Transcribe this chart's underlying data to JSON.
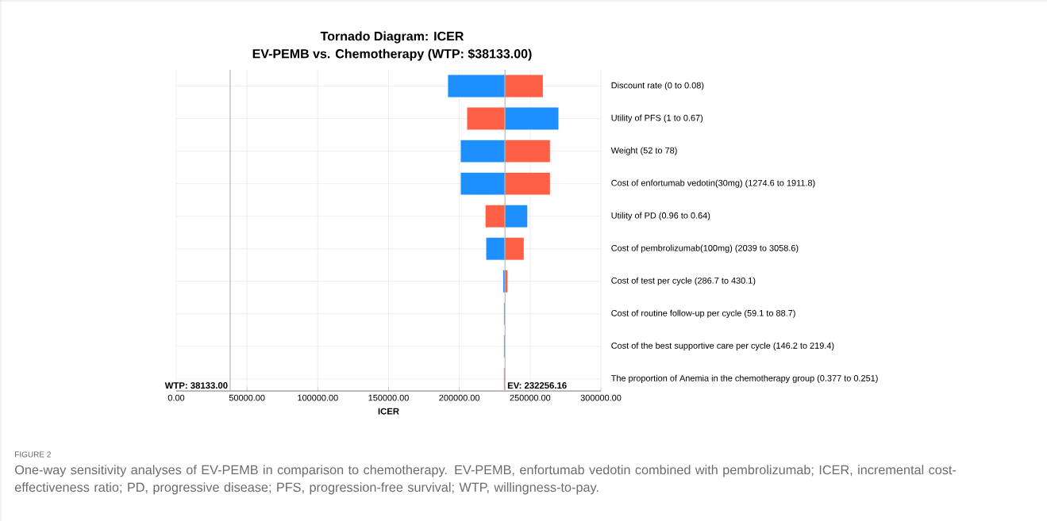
{
  "chart_data": {
    "type": "bar",
    "orientation": "horizontal",
    "title": "Tornado Diagram: ICER",
    "subtitle": "EV-PEMB vs. Chemotherapy (WTP: $38133.00)",
    "xlabel": "ICER",
    "categories": [
      "Discount rate (0 to 0.08)",
      "Utility of PFS (1 to 0.67)",
      "Weight (52 to 78)",
      "Cost of enfortumab vedotin(30mg) (1274.6 to 1911.8)",
      "Utility of PD (0.96 to 0.64)",
      "Cost of pembrolizumab(100mg) (2039 to 3058.6)",
      "Cost of test per cycle (286.7 to 430.1)",
      "Cost of routine follow-up per cycle (59.1 to 88.7)",
      "Cost of the best supportive care per cycle (146.2 to 219.4)",
      "The proportion of Anemia in the chemotherapy group (0.377 to 0.251)"
    ],
    "series": [
      {
        "color": "#1e8fff",
        "base": [
          192000,
          232000,
          201000,
          201000,
          232000,
          219000,
          231000,
          231500,
          231500,
          null
        ],
        "values": [
          40000,
          38000,
          31000,
          31000,
          16000,
          13000,
          1000,
          500,
          500,
          null
        ]
      },
      {
        "color": "#ff5f45",
        "base": [
          232000,
          205500,
          232000,
          232000,
          218500,
          232000,
          232000,
          null,
          null,
          231500
        ],
        "values": [
          27000,
          26500,
          32000,
          32000,
          13500,
          13500,
          2000,
          null,
          null,
          500
        ]
      }
    ],
    "xlim": [
      0,
      300000
    ],
    "xticks": [
      {
        "value": 0,
        "label": "0.00"
      },
      {
        "value": 50000,
        "label": "50000.00"
      },
      {
        "value": 100000,
        "label": "100000.00"
      },
      {
        "value": 150000,
        "label": "150000.00"
      },
      {
        "value": 200000,
        "label": "200000.00"
      },
      {
        "value": 250000,
        "label": "250000.00"
      },
      {
        "value": 300000,
        "label": "300000.00"
      }
    ],
    "ref_lines": [
      {
        "axis": "x",
        "value": 38133,
        "label": "WTP: 38133.00",
        "color": "#b0b0b0"
      },
      {
        "axis": "x",
        "value": 232256.16,
        "label": "EV: 232256.16",
        "color": "#b0b0b0"
      }
    ],
    "grid": true,
    "annotations": [
      "FIGURE 2",
      "One-way sensitivity analyses of EV-PEMB in comparison to chemotherapy. EV-PEMB, enfortumab vedotin combined with pembrolizumab; ICER, incremental cost-effectiveness ratio; PD, progressive disease; PFS, progression-free survival; WTP, willingness-to-pay."
    ]
  }
}
